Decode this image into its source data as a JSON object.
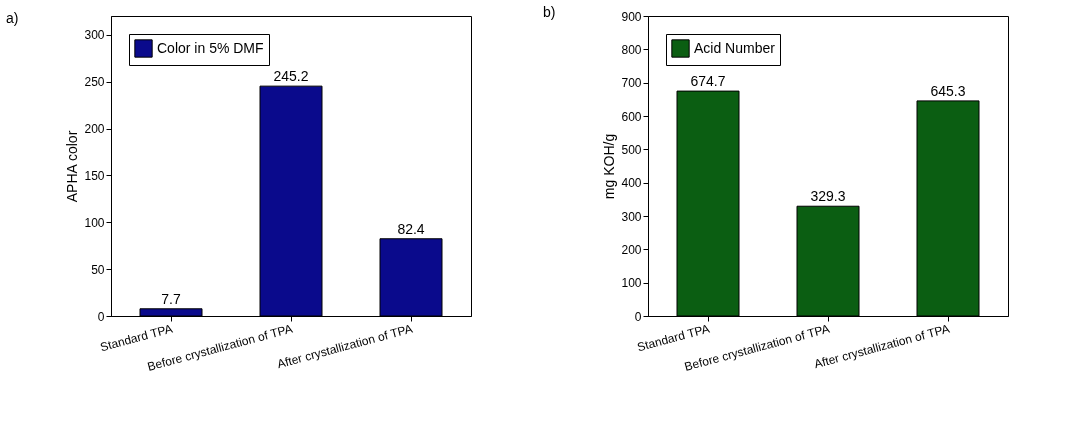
{
  "chart_data": [
    {
      "type": "bar",
      "title": "a)",
      "ylabel": "APHA color",
      "categories": [
        "Standard TPA",
        "Before crystallization of TPA",
        "After crystallization of TPA"
      ],
      "series": [
        {
          "name": "Color in 5% DMF",
          "color": "#0a0a8c",
          "values": [
            7.7,
            245.2,
            82.4
          ]
        }
      ],
      "ylim": [
        0,
        320
      ],
      "yticks": [
        0,
        50,
        100,
        150,
        200,
        250,
        300
      ],
      "grid": false,
      "legend": "top left",
      "data_labels": true
    },
    {
      "type": "bar",
      "title": "b)",
      "ylabel": "mg KOH/g",
      "categories": [
        "Standard TPA",
        "Before crystallization of TPA",
        "After crystallization of TPA"
      ],
      "series": [
        {
          "name": "Acid Number",
          "color": "#0b5e12",
          "values": [
            674.7,
            329.3,
            645.3
          ]
        }
      ],
      "ylim": [
        0,
        900
      ],
      "yticks": [
        0,
        100,
        200,
        300,
        400,
        500,
        600,
        700,
        800,
        900
      ],
      "grid": false,
      "legend": "top left",
      "data_labels": true
    }
  ]
}
